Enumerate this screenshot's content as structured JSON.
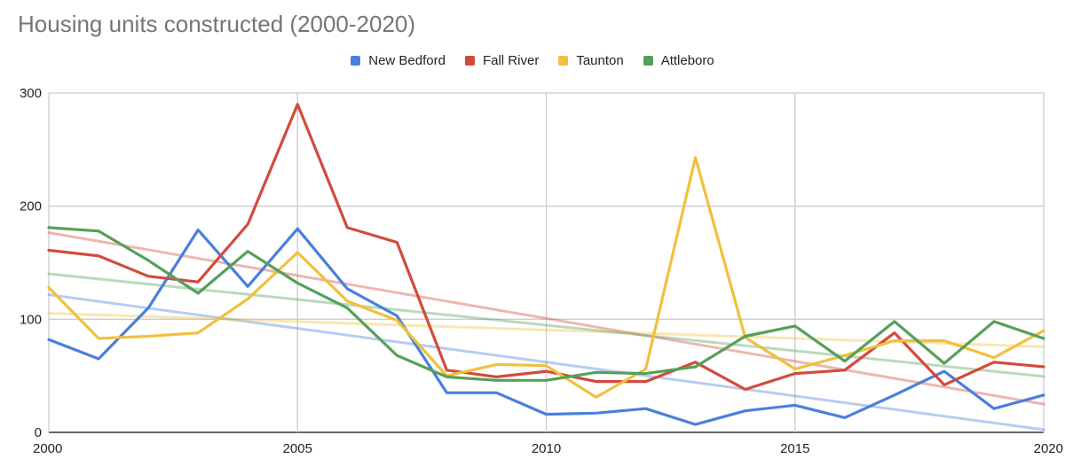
{
  "chart_data": {
    "type": "line",
    "title": "Housing units constructed (2000-2020)",
    "xlabel": "",
    "ylabel": "",
    "xlim": [
      2000,
      2020
    ],
    "ylim": [
      0,
      300
    ],
    "x_ticks": [
      "2000",
      "2005",
      "2010",
      "2015",
      "2020"
    ],
    "y_ticks": [
      "0",
      "100",
      "200",
      "300"
    ],
    "grid": true,
    "legend_position": "top",
    "trendlines": "linear",
    "x": [
      2000,
      2001,
      2002,
      2003,
      2004,
      2005,
      2006,
      2007,
      2008,
      2009,
      2010,
      2011,
      2012,
      2013,
      2014,
      2015,
      2016,
      2017,
      2018,
      2019,
      2020
    ],
    "series": [
      {
        "name": "New Bedford",
        "color": "#4a7fdd",
        "values": [
          82,
          65,
          110,
          179,
          129,
          180,
          127,
          103,
          35,
          35,
          16,
          17,
          21,
          7,
          19,
          24,
          13,
          33,
          54,
          21,
          33
        ]
      },
      {
        "name": "Fall River",
        "color": "#d24b3a",
        "values": [
          161,
          156,
          138,
          133,
          184,
          290,
          181,
          168,
          55,
          49,
          54,
          45,
          45,
          62,
          38,
          52,
          55,
          88,
          42,
          62,
          58
        ]
      },
      {
        "name": "Taunton",
        "color": "#f0c03e",
        "values": [
          128,
          83,
          85,
          88,
          118,
          159,
          116,
          99,
          50,
          60,
          59,
          31,
          56,
          243,
          84,
          56,
          68,
          81,
          81,
          66,
          90
        ]
      },
      {
        "name": "Attleboro",
        "color": "#55a05a",
        "values": [
          181,
          178,
          152,
          123,
          160,
          132,
          110,
          68,
          49,
          46,
          46,
          53,
          52,
          58,
          85,
          94,
          63,
          98,
          61,
          98,
          83
        ]
      }
    ]
  }
}
